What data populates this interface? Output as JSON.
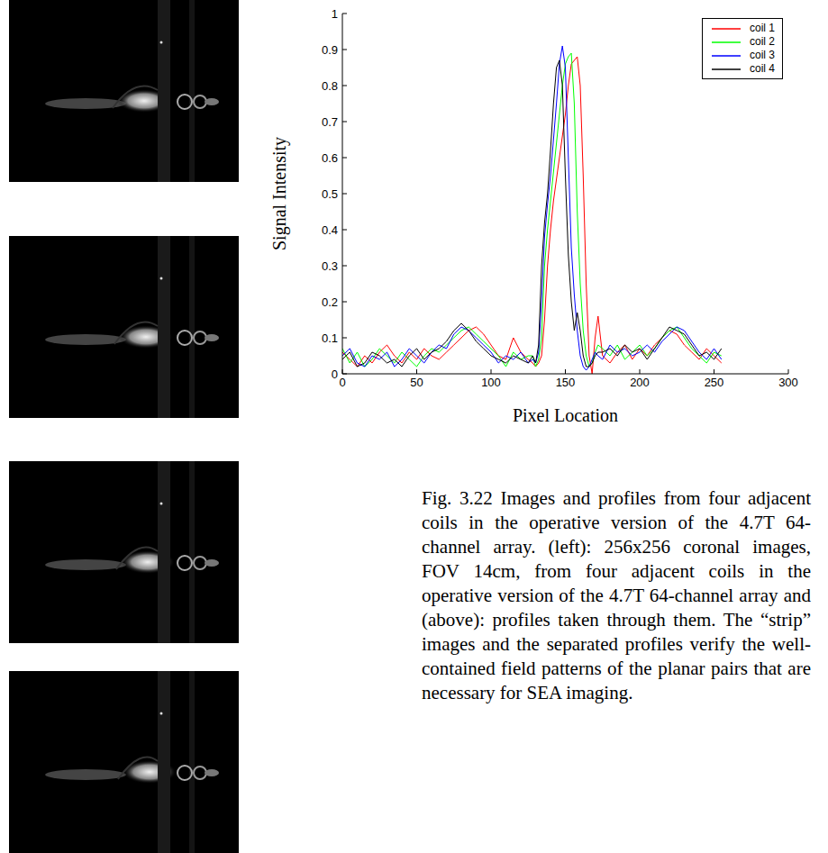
{
  "chart_data": {
    "type": "line",
    "x": [
      0,
      5,
      10,
      15,
      20,
      25,
      30,
      35,
      40,
      45,
      50,
      55,
      60,
      65,
      70,
      75,
      80,
      85,
      90,
      95,
      100,
      105,
      110,
      115,
      120,
      125,
      128,
      130,
      132,
      134,
      136,
      138,
      140,
      142,
      144,
      146,
      148,
      150,
      152,
      154,
      156,
      158,
      160,
      162,
      164,
      166,
      168,
      170,
      172,
      175,
      180,
      185,
      190,
      195,
      200,
      205,
      210,
      215,
      220,
      225,
      230,
      235,
      240,
      245,
      250,
      255
    ],
    "series": [
      {
        "name": "coil 1",
        "color": "#ff0000",
        "values": [
          0.06,
          0.04,
          0.02,
          0.05,
          0.03,
          0.06,
          0.08,
          0.05,
          0.03,
          0.06,
          0.04,
          0.07,
          0.05,
          0.04,
          0.06,
          0.08,
          0.1,
          0.12,
          0.13,
          0.11,
          0.08,
          0.05,
          0.04,
          0.1,
          0.06,
          0.04,
          0.03,
          0.02,
          0.03,
          0.05,
          0.15,
          0.3,
          0.4,
          0.48,
          0.54,
          0.6,
          0.66,
          0.72,
          0.8,
          0.86,
          0.87,
          0.88,
          0.8,
          0.55,
          0.25,
          0.05,
          0.0,
          0.1,
          0.16,
          0.05,
          0.03,
          0.06,
          0.08,
          0.04,
          0.07,
          0.05,
          0.08,
          0.1,
          0.12,
          0.11,
          0.08,
          0.06,
          0.04,
          0.07,
          0.05,
          0.03
        ]
      },
      {
        "name": "coil 2",
        "color": "#00ff00",
        "values": [
          0.07,
          0.03,
          0.06,
          0.02,
          0.04,
          0.07,
          0.05,
          0.03,
          0.06,
          0.04,
          0.02,
          0.05,
          0.07,
          0.06,
          0.08,
          0.1,
          0.12,
          0.13,
          0.11,
          0.09,
          0.07,
          0.05,
          0.02,
          0.06,
          0.04,
          0.05,
          0.05,
          0.02,
          0.04,
          0.1,
          0.3,
          0.4,
          0.48,
          0.56,
          0.64,
          0.72,
          0.8,
          0.86,
          0.88,
          0.89,
          0.75,
          0.45,
          0.25,
          0.12,
          0.05,
          0.02,
          0.03,
          0.06,
          0.08,
          0.07,
          0.05,
          0.08,
          0.04,
          0.06,
          0.08,
          0.05,
          0.07,
          0.1,
          0.12,
          0.13,
          0.1,
          0.07,
          0.05,
          0.03,
          0.06,
          0.05
        ]
      },
      {
        "name": "coil 3",
        "color": "#0000ff",
        "values": [
          0.05,
          0.07,
          0.03,
          0.02,
          0.05,
          0.04,
          0.06,
          0.02,
          0.04,
          0.07,
          0.05,
          0.03,
          0.06,
          0.08,
          0.07,
          0.11,
          0.13,
          0.12,
          0.1,
          0.08,
          0.06,
          0.03,
          0.05,
          0.04,
          0.06,
          0.03,
          0.04,
          0.03,
          0.06,
          0.2,
          0.38,
          0.47,
          0.55,
          0.65,
          0.75,
          0.86,
          0.91,
          0.85,
          0.6,
          0.35,
          0.22,
          0.12,
          0.05,
          0.02,
          0.01,
          0.02,
          0.04,
          0.06,
          0.05,
          0.04,
          0.08,
          0.06,
          0.07,
          0.05,
          0.06,
          0.08,
          0.06,
          0.09,
          0.11,
          0.13,
          0.12,
          0.09,
          0.06,
          0.04,
          0.07,
          0.04
        ]
      },
      {
        "name": "coil 4",
        "color": "#000000",
        "values": [
          0.04,
          0.06,
          0.02,
          0.03,
          0.06,
          0.05,
          0.03,
          0.04,
          0.02,
          0.05,
          0.07,
          0.04,
          0.06,
          0.07,
          0.09,
          0.12,
          0.14,
          0.12,
          0.09,
          0.07,
          0.05,
          0.04,
          0.03,
          0.05,
          0.04,
          0.03,
          0.05,
          0.03,
          0.08,
          0.3,
          0.42,
          0.5,
          0.62,
          0.75,
          0.85,
          0.87,
          0.8,
          0.55,
          0.33,
          0.2,
          0.12,
          0.17,
          0.12,
          0.05,
          0.02,
          0.02,
          0.03,
          0.05,
          0.06,
          0.06,
          0.07,
          0.05,
          0.08,
          0.06,
          0.07,
          0.04,
          0.07,
          0.1,
          0.13,
          0.12,
          0.11,
          0.08,
          0.05,
          0.06,
          0.04,
          0.07
        ]
      }
    ],
    "x_label": "Pixel Location",
    "y_label": "Signal Intensity",
    "xlim": [
      0,
      300
    ],
    "xticks": [
      0,
      50,
      100,
      150,
      200,
      250,
      300
    ],
    "ylim": [
      0,
      1
    ],
    "yticks": [
      0,
      0.1,
      0.2,
      0.3,
      0.4,
      0.5,
      0.6,
      0.7,
      0.8,
      0.9,
      1
    ],
    "grid": false,
    "legend": "upper right"
  },
  "caption": "Fig. 3.22 Images and profiles from four adjacent coils in the operative version of the 4.7T 64-channel array. (left): 256x256 coronal images, FOV 14cm, from four adjacent coils in the operative version of the 4.7T 64-channel array and (above): profiles taken through them. The “strip” images and the separated profiles verify the well-contained field patterns of the planar pairs that are necessary for SEA imaging."
}
